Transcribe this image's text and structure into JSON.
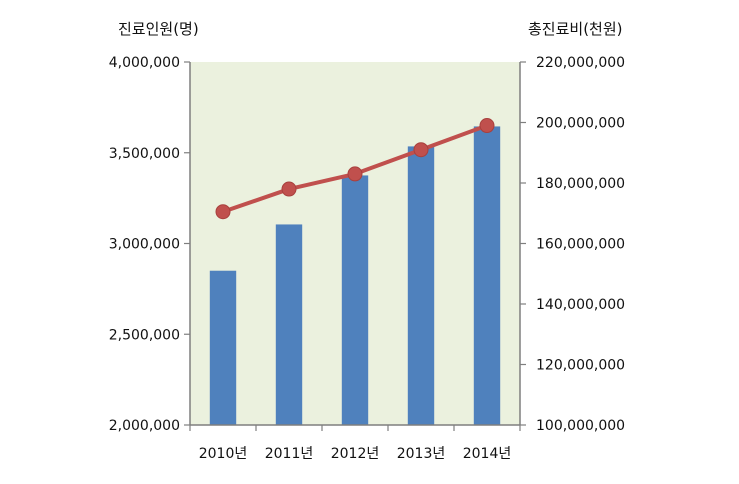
{
  "chart_data": {
    "type": "bar",
    "categories": [
      "2010년",
      "2011년",
      "2012년",
      "2013년",
      "2014년"
    ],
    "series": [
      {
        "type": "bar",
        "axis": "left",
        "color": "#4f81bd",
        "values": [
          2850000,
          3105000,
          3375000,
          3535000,
          3645000
        ]
      },
      {
        "type": "line",
        "axis": "right",
        "color": "#c0504d",
        "values": [
          170500000,
          178000000,
          183000000,
          191000000,
          199000000
        ]
      }
    ],
    "ylabel": "진료인원(명)",
    "y2label": "총진료비(천원)",
    "ylim": [
      2000000,
      4000000
    ],
    "y2lim": [
      100000000,
      220000000
    ],
    "yticks": [
      "2,000,000",
      "2,500,000",
      "3,000,000",
      "3,500,000",
      "4,000,000"
    ],
    "y2ticks": [
      "100,000,000",
      "120,000,000",
      "140,000,000",
      "160,000,000",
      "180,000,000",
      "200,000,000",
      "220,000,000"
    ],
    "plot_background": "#ebf1de",
    "grid": false,
    "legend": "none"
  }
}
